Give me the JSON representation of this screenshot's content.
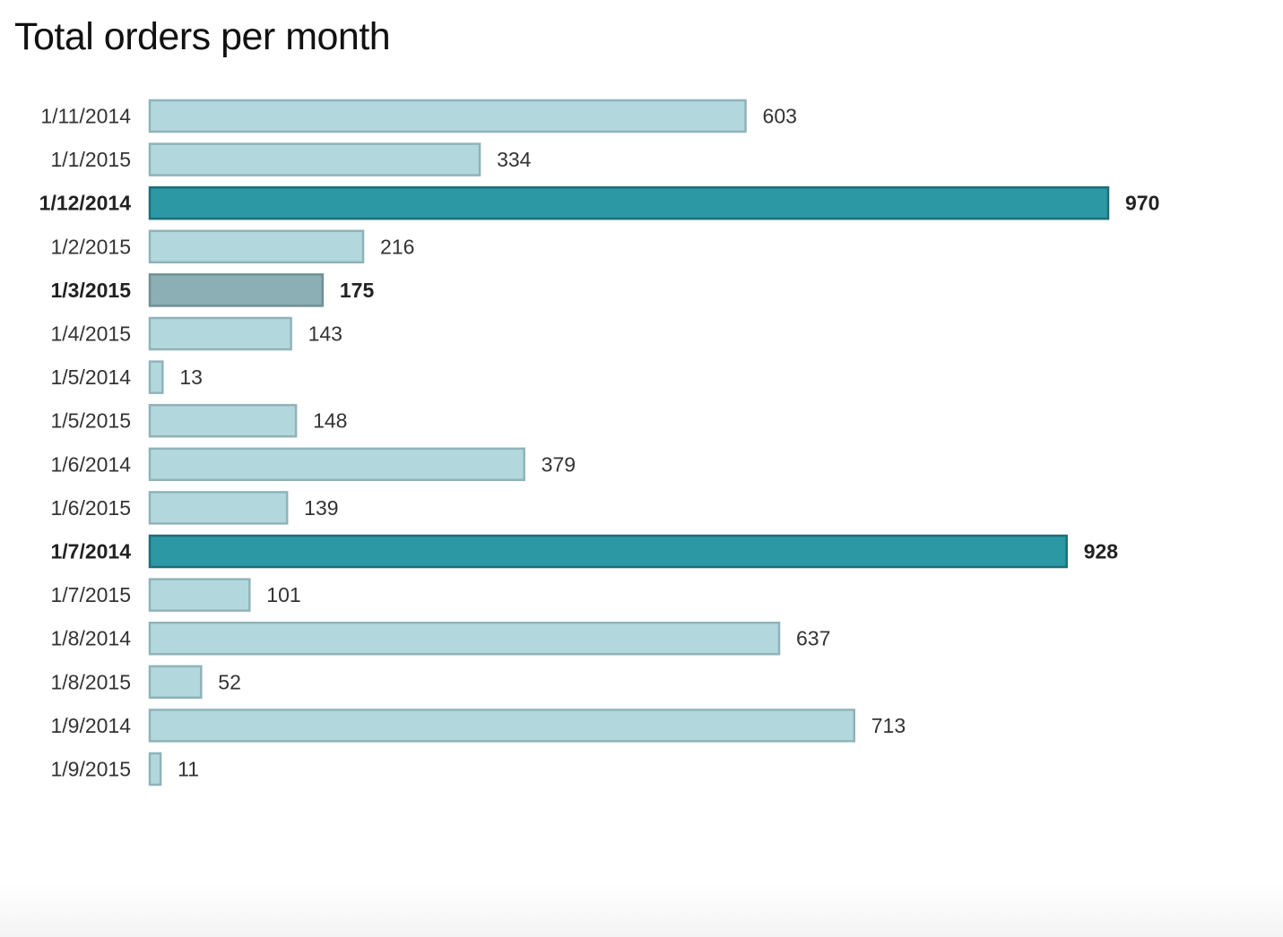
{
  "chart_data": {
    "type": "bar",
    "orientation": "horizontal",
    "title": "Total orders per month",
    "xlabel": "",
    "ylabel": "",
    "xlim": [
      0,
      970
    ],
    "grid": false,
    "legend": "none",
    "categories": [
      "1/11/2014",
      "1/1/2015",
      "1/12/2014",
      "1/2/2015",
      "1/3/2015",
      "1/4/2015",
      "1/5/2014",
      "1/5/2015",
      "1/6/2014",
      "1/6/2015",
      "1/7/2014",
      "1/7/2015",
      "1/8/2014",
      "1/8/2015",
      "1/9/2014",
      "1/9/2015"
    ],
    "values": [
      603,
      334,
      970,
      216,
      175,
      143,
      13,
      148,
      379,
      139,
      928,
      101,
      637,
      52,
      713,
      11
    ],
    "value_labels": [
      "603",
      "334",
      "970",
      "216",
      "175",
      "143",
      "13",
      "148",
      "379",
      "139",
      "928",
      "101",
      "637",
      "52",
      "713",
      "11"
    ],
    "highlight": [
      "normal",
      "normal",
      "top",
      "normal",
      "selected",
      "normal",
      "normal",
      "normal",
      "normal",
      "normal",
      "top",
      "normal",
      "normal",
      "normal",
      "normal",
      "normal"
    ],
    "colors": {
      "normal_fill": "#b2d8dd",
      "normal_stroke": "#8fb3b9",
      "top_fill": "#2b98a4",
      "top_stroke": "#1d6e77",
      "selected_fill": "#8bafb4",
      "selected_stroke": "#6f8f94"
    }
  }
}
